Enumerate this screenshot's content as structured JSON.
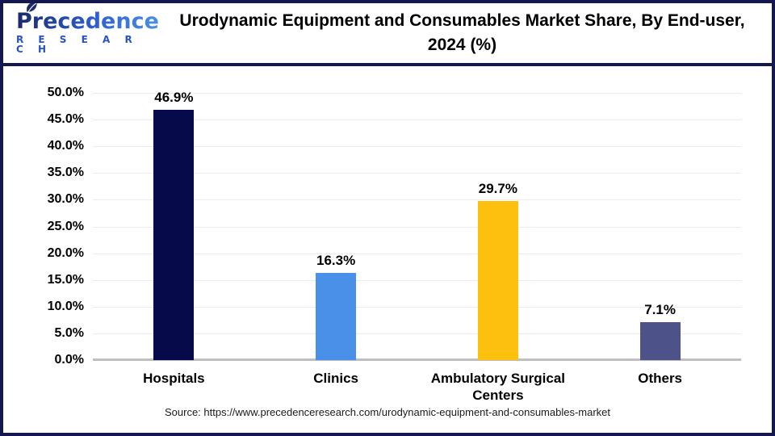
{
  "header": {
    "logo": {
      "brand": "Precedence",
      "sub": "R E S E A R C H"
    },
    "title": "Urodynamic Equipment and Consumables Market Share, By End-user, 2024 (%)"
  },
  "chart_data": {
    "type": "bar",
    "title": "Urodynamic Equipment and Consumables Market Share, By End-user, 2024 (%)",
    "categories": [
      "Hospitals",
      "Clinics",
      "Ambulatory Surgical Centers",
      "Others"
    ],
    "values": [
      46.9,
      16.3,
      29.7,
      7.1
    ],
    "value_labels": [
      "46.9%",
      "16.3%",
      "29.7%",
      "7.1%"
    ],
    "bar_colors": [
      "#06094A",
      "#4A90E9",
      "#FDC00F",
      "#4D5289"
    ],
    "xlabel": "",
    "ylabel": "",
    "ylim": [
      0,
      50
    ],
    "ytick_step": 5,
    "ytick_labels": [
      "0.0%",
      "5.0%",
      "10.0%",
      "15.0%",
      "20.0%",
      "25.0%",
      "30.0%",
      "35.0%",
      "40.0%",
      "45.0%",
      "50.0%"
    ],
    "grid": true,
    "legend": false
  },
  "footer": {
    "source": "Source: https://www.precedenceresearch.com/urodynamic-equipment-and-consumables-market"
  },
  "colors": {
    "frame_navy": "#14184E",
    "gridline": "#ECECEC",
    "baseline": "#BFBFBF",
    "logo_navy": "#1B2A6B",
    "logo_blue": "#2653C5"
  }
}
